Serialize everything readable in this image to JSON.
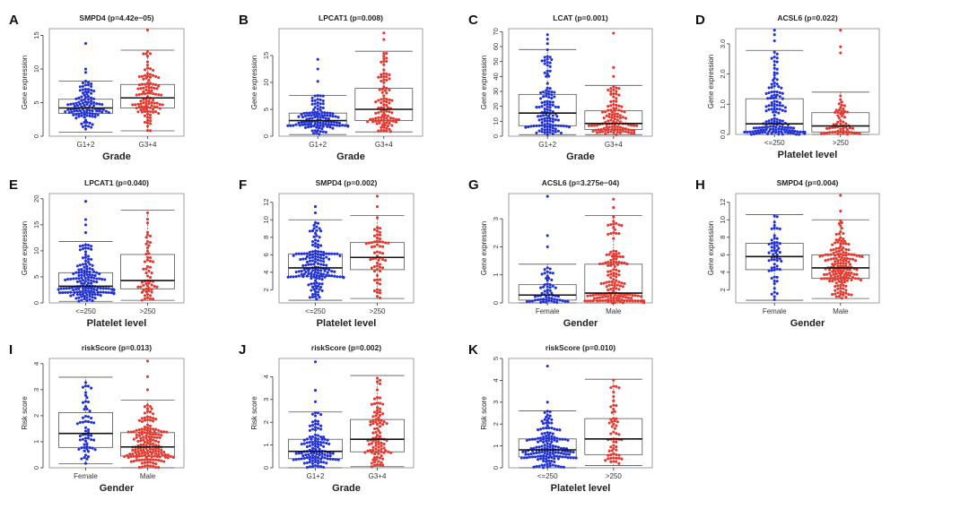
{
  "colors": {
    "group1": "#1f2fd9",
    "group2": "#e8352b",
    "box": "#555555",
    "median": "#111111",
    "axis": "#333333"
  },
  "chart_data": [
    {
      "letter": "A",
      "title": "SMPD4 (p=4.42e−05)",
      "type": "boxplot-beeswarm",
      "ylabel": "Gene expression",
      "xlabel": "Grade",
      "categories": [
        "G1+2",
        "G3+4"
      ],
      "ylim": [
        0,
        16
      ],
      "yticks": [
        0,
        5,
        10,
        15
      ],
      "ytick_labels": [
        "0",
        "5",
        "10",
        "15"
      ],
      "groups": [
        {
          "min": 0.6,
          "q1": 3.4,
          "median": 4.2,
          "q3": 5.5,
          "max": 8.2,
          "outliers": [
            9.5,
            10.0,
            13.8
          ],
          "n": 110
        },
        {
          "min": 0.8,
          "q1": 4.2,
          "median": 5.7,
          "q3": 7.7,
          "max": 12.8,
          "outliers": [
            15.8
          ],
          "n": 110
        }
      ]
    },
    {
      "letter": "B",
      "title": "LPCAT1 (p=0.008)",
      "type": "boxplot-beeswarm",
      "ylabel": "Gene expression",
      "xlabel": "Grade",
      "categories": [
        "G1+2",
        "G3+4"
      ],
      "ylim": [
        0,
        20
      ],
      "yticks": [
        0,
        5,
        10,
        15
      ],
      "ytick_labels": [
        "0",
        "5",
        "10",
        "15"
      ],
      "groups": [
        {
          "min": 0.3,
          "q1": 2.0,
          "median": 2.9,
          "q3": 4.3,
          "max": 7.6,
          "outliers": [
            10.2,
            12.5,
            14.3
          ],
          "n": 120
        },
        {
          "min": 0.8,
          "q1": 2.9,
          "median": 5.0,
          "q3": 8.9,
          "max": 15.8,
          "outliers": [
            18.0,
            19.2
          ],
          "n": 100
        }
      ]
    },
    {
      "letter": "C",
      "title": "LCAT (p=0.001)",
      "type": "boxplot-beeswarm",
      "ylabel": "Gene expression",
      "xlabel": "Grade",
      "categories": [
        "G1+2",
        "G3+4"
      ],
      "ylim": [
        0,
        72
      ],
      "yticks": [
        0,
        10,
        20,
        30,
        40,
        50,
        60,
        70
      ],
      "ytick_labels": [
        "0",
        "10",
        "20",
        "30",
        "40",
        "50",
        "60",
        "70"
      ],
      "groups": [
        {
          "min": 1.0,
          "q1": 7.0,
          "median": 15.5,
          "q3": 28.0,
          "max": 58.0,
          "outliers": [
            62.0,
            65.0,
            68.0
          ],
          "n": 120
        },
        {
          "min": 1.0,
          "q1": 4.5,
          "median": 8.5,
          "q3": 17.0,
          "max": 34.0,
          "outliers": [
            40.0,
            46.0,
            69.0
          ],
          "n": 110
        }
      ]
    },
    {
      "letter": "D",
      "title": "ACSL6 (p=0.022)",
      "type": "boxplot-beeswarm",
      "ylabel": "Gene expression",
      "xlabel": "Platelet level",
      "categories": [
        "<=250",
        ">250"
      ],
      "ylim": [
        0,
        3.5
      ],
      "yticks": [
        0.0,
        1.0,
        2.0,
        3.0
      ],
      "ytick_labels": [
        "0.0",
        "1.0",
        "2.0",
        "3.0"
      ],
      "groups": [
        {
          "min": 0.0,
          "q1": 0.08,
          "median": 0.35,
          "q3": 1.18,
          "max": 2.78,
          "outliers": [
            3.1,
            3.3,
            3.45
          ],
          "n": 160
        },
        {
          "min": 0.0,
          "q1": 0.08,
          "median": 0.28,
          "q3": 0.72,
          "max": 1.4,
          "outliers": [
            2.7,
            2.9,
            3.45
          ],
          "n": 60
        }
      ]
    },
    {
      "letter": "E",
      "title": "LPCAT1 (p=0.040)",
      "type": "boxplot-beeswarm",
      "ylabel": "Gene expression",
      "xlabel": "Platelet level",
      "categories": [
        "<=250",
        ">250"
      ],
      "ylim": [
        0,
        21
      ],
      "yticks": [
        0,
        5,
        10,
        15,
        20
      ],
      "ytick_labels": [
        "0",
        "5",
        "10",
        "15",
        "20"
      ],
      "groups": [
        {
          "min": 0.3,
          "q1": 2.0,
          "median": 3.2,
          "q3": 5.8,
          "max": 11.8,
          "outliers": [
            13.5,
            15.0,
            16.0,
            19.5
          ],
          "n": 160
        },
        {
          "min": 0.5,
          "q1": 2.7,
          "median": 4.3,
          "q3": 9.3,
          "max": 17.8,
          "outliers": [],
          "n": 60
        }
      ]
    },
    {
      "letter": "F",
      "title": "SMPD4 (p=0.002)",
      "type": "boxplot-beeswarm",
      "ylabel": "",
      "xlabel": "Platelet level",
      "categories": [
        "<=250",
        ">250"
      ],
      "ylim": [
        0.5,
        13
      ],
      "yticks": [
        2,
        4,
        6,
        8,
        10,
        12
      ],
      "ytick_labels": [
        "2",
        "4",
        "6",
        "8",
        "10",
        "12"
      ],
      "groups": [
        {
          "min": 0.8,
          "q1": 3.5,
          "median": 4.5,
          "q3": 6.1,
          "max": 10.0,
          "outliers": [
            10.8,
            11.5
          ],
          "n": 160
        },
        {
          "min": 1.0,
          "q1": 4.3,
          "median": 5.7,
          "q3": 7.4,
          "max": 10.5,
          "outliers": [
            11.5,
            12.7
          ],
          "n": 60
        }
      ]
    },
    {
      "letter": "G",
      "title": "ACSL6 (p=3.275e−04)",
      "type": "boxplot-beeswarm",
      "ylabel": "Gene expression",
      "xlabel": "Gender",
      "categories": [
        "Female",
        "Male"
      ],
      "ylim": [
        0,
        3.9
      ],
      "yticks": [
        0,
        1,
        2,
        3
      ],
      "ytick_labels": [
        "0",
        "1",
        "2",
        "3"
      ],
      "groups": [
        {
          "min": 0.0,
          "q1": 0.1,
          "median": 0.28,
          "q3": 0.65,
          "max": 1.38,
          "outliers": [
            2.0,
            2.4,
            3.8
          ],
          "n": 60
        },
        {
          "min": 0.0,
          "q1": 0.08,
          "median": 0.35,
          "q3": 1.38,
          "max": 3.12,
          "outliers": [
            3.4,
            3.7
          ],
          "n": 170
        }
      ]
    },
    {
      "letter": "H",
      "title": "SMPD4 (p=0.004)",
      "type": "boxplot-beeswarm",
      "ylabel": "Gene expression",
      "xlabel": "Gender",
      "categories": [
        "Female",
        "Male"
      ],
      "ylim": [
        0.5,
        13
      ],
      "yticks": [
        2,
        4,
        6,
        8,
        10,
        12
      ],
      "ytick_labels": [
        "2",
        "4",
        "6",
        "8",
        "10",
        "12"
      ],
      "groups": [
        {
          "min": 0.8,
          "q1": 4.3,
          "median": 5.8,
          "q3": 7.3,
          "max": 10.6,
          "outliers": [],
          "n": 60
        },
        {
          "min": 1.0,
          "q1": 3.3,
          "median": 4.5,
          "q3": 6.0,
          "max": 10.0,
          "outliers": [
            11.0,
            12.8
          ],
          "n": 170
        }
      ]
    },
    {
      "letter": "I",
      "title": "riskScore (p=0.013)",
      "type": "boxplot-beeswarm",
      "ylabel": "Risk score",
      "xlabel": "Gender",
      "categories": [
        "Female",
        "Male"
      ],
      "ylim": [
        0,
        4.2
      ],
      "yticks": [
        0,
        1,
        2,
        3,
        4
      ],
      "ytick_labels": [
        "0",
        "1",
        "2",
        "3",
        "4"
      ],
      "groups": [
        {
          "min": 0.15,
          "q1": 0.78,
          "median": 1.32,
          "q3": 2.12,
          "max": 3.48,
          "outliers": [],
          "n": 60
        },
        {
          "min": 0.0,
          "q1": 0.45,
          "median": 0.8,
          "q3": 1.35,
          "max": 2.6,
          "outliers": [
            3.0,
            3.5,
            4.1
          ],
          "n": 170
        }
      ]
    },
    {
      "letter": "J",
      "title": "riskScore (p=0.002)",
      "type": "boxplot-beeswarm",
      "ylabel": "Risk score",
      "xlabel": "Grade",
      "categories": [
        "G1+2",
        "G3+4"
      ],
      "ylim": [
        0,
        4.8
      ],
      "yticks": [
        0,
        1,
        2,
        3,
        4
      ],
      "ytick_labels": [
        "0",
        "1",
        "2",
        "3",
        "4"
      ],
      "groups": [
        {
          "min": 0.0,
          "q1": 0.4,
          "median": 0.72,
          "q3": 1.25,
          "max": 2.45,
          "outliers": [
            2.9,
            3.4,
            4.65
          ],
          "n": 120
        },
        {
          "min": 0.05,
          "q1": 0.7,
          "median": 1.25,
          "q3": 2.12,
          "max": 4.05,
          "outliers": [],
          "n": 100
        }
      ]
    },
    {
      "letter": "K",
      "title": "riskScore (p=0.010)",
      "type": "boxplot-beeswarm",
      "ylabel": "Risk score",
      "xlabel": "Platelet level",
      "categories": [
        "<=250",
        ">250"
      ],
      "ylim": [
        0,
        5
      ],
      "yticks": [
        0,
        1,
        2,
        3,
        4,
        5
      ],
      "ytick_labels": [
        "0",
        "1",
        "2",
        "3",
        "4",
        "5"
      ],
      "groups": [
        {
          "min": 0.0,
          "q1": 0.5,
          "median": 0.82,
          "q3": 1.32,
          "max": 2.6,
          "outliers": [
            3.0,
            4.65
          ],
          "n": 160
        },
        {
          "min": 0.1,
          "q1": 0.6,
          "median": 1.32,
          "q3": 2.25,
          "max": 4.05,
          "outliers": [],
          "n": 60
        }
      ]
    }
  ]
}
